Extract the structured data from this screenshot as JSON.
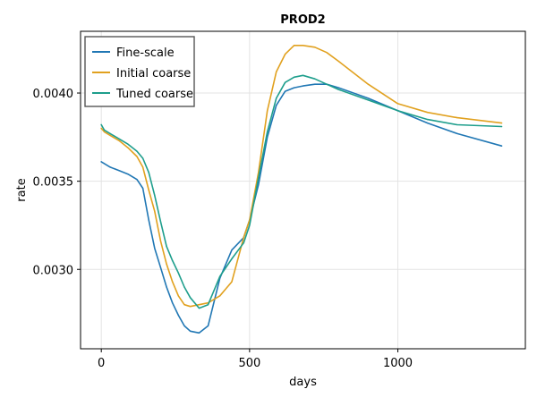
{
  "chart_data": {
    "type": "line",
    "title": "PROD2",
    "xlabel": "days",
    "ylabel": "rate",
    "xlim": [
      -70,
      1430
    ],
    "ylim": [
      0.00255,
      0.00435
    ],
    "grid": true,
    "legend_position": "top-left",
    "x_ticks": [
      0,
      500,
      1000
    ],
    "x_tick_labels": [
      "0",
      "500",
      "1000"
    ],
    "y_ticks": [
      0.003,
      0.0035,
      0.004
    ],
    "y_tick_labels": [
      "0.0030",
      "0.0035",
      "0.0040"
    ],
    "series": [
      {
        "name": "Fine-scale",
        "color": "#2077b4",
        "x": [
          0,
          10,
          30,
          60,
          90,
          120,
          140,
          160,
          180,
          200,
          220,
          240,
          260,
          280,
          300,
          330,
          360,
          400,
          440,
          480,
          500,
          530,
          560,
          590,
          620,
          650,
          680,
          720,
          760,
          800,
          900,
          1000,
          1100,
          1200,
          1350
        ],
        "y": [
          0.00361,
          0.0036,
          0.00358,
          0.00356,
          0.00354,
          0.00351,
          0.00346,
          0.00328,
          0.00312,
          0.00301,
          0.0029,
          0.00281,
          0.00274,
          0.00268,
          0.00265,
          0.00264,
          0.00268,
          0.00295,
          0.00311,
          0.00318,
          0.00328,
          0.00348,
          0.00375,
          0.00393,
          0.00401,
          0.00403,
          0.00404,
          0.00405,
          0.00405,
          0.00403,
          0.00397,
          0.0039,
          0.00383,
          0.00377,
          0.0037
        ]
      },
      {
        "name": "Initial coarse",
        "color": "#e1a11f",
        "x": [
          0,
          10,
          30,
          60,
          90,
          120,
          140,
          160,
          180,
          200,
          220,
          240,
          260,
          280,
          300,
          330,
          360,
          400,
          440,
          480,
          500,
          530,
          560,
          590,
          620,
          650,
          680,
          720,
          760,
          800,
          900,
          1000,
          1100,
          1200,
          1350
        ],
        "y": [
          0.0038,
          0.00378,
          0.00376,
          0.00373,
          0.00369,
          0.00364,
          0.00358,
          0.00345,
          0.00333,
          0.00316,
          0.00303,
          0.00293,
          0.00285,
          0.0028,
          0.00279,
          0.0028,
          0.00281,
          0.00285,
          0.00293,
          0.00318,
          0.00328,
          0.00355,
          0.0039,
          0.00412,
          0.00422,
          0.00427,
          0.00427,
          0.00426,
          0.00423,
          0.00418,
          0.00405,
          0.00394,
          0.00389,
          0.00386,
          0.00383
        ]
      },
      {
        "name": "Tuned coarse",
        "color": "#1e9e8c",
        "x": [
          0,
          10,
          30,
          60,
          90,
          120,
          140,
          160,
          180,
          200,
          220,
          240,
          260,
          280,
          300,
          330,
          360,
          400,
          440,
          480,
          500,
          530,
          560,
          590,
          620,
          650,
          680,
          720,
          760,
          800,
          900,
          1000,
          1100,
          1200,
          1350
        ],
        "y": [
          0.00382,
          0.00379,
          0.00377,
          0.00374,
          0.00371,
          0.00367,
          0.00363,
          0.00355,
          0.00342,
          0.00327,
          0.00313,
          0.00305,
          0.00298,
          0.0029,
          0.00284,
          0.00278,
          0.0028,
          0.00296,
          0.00306,
          0.00315,
          0.00325,
          0.00352,
          0.00378,
          0.00397,
          0.00406,
          0.00409,
          0.0041,
          0.00408,
          0.00405,
          0.00402,
          0.00396,
          0.0039,
          0.00385,
          0.00382,
          0.00381
        ]
      }
    ]
  }
}
